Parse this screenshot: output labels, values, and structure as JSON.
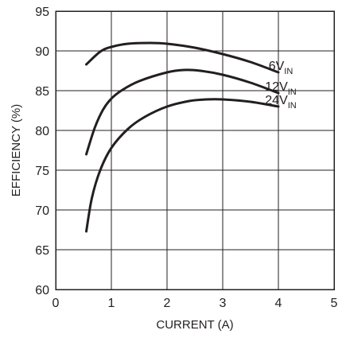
{
  "chart_data": {
    "type": "line",
    "title": "",
    "xlabel": "CURRENT (A)",
    "ylabel": "EFFICIENCY (%)",
    "xlim": [
      0,
      5
    ],
    "ylim": [
      60,
      95
    ],
    "x_ticks": [
      0,
      1,
      2,
      3,
      4,
      5
    ],
    "y_ticks": [
      60,
      65,
      70,
      75,
      80,
      85,
      90,
      95
    ],
    "grid": true,
    "legend": "inline labels at right end of curves",
    "line_color": "#231f20",
    "series": [
      {
        "name": "6V",
        "name_subscript": "IN",
        "x": [
          0.55,
          0.8,
          1.0,
          1.3,
          1.7,
          2.0,
          2.5,
          3.0,
          3.5,
          4.0
        ],
        "y": [
          88.3,
          89.9,
          90.5,
          90.9,
          91.0,
          90.9,
          90.4,
          89.6,
          88.6,
          87.3
        ]
      },
      {
        "name": "12V",
        "name_subscript": "IN",
        "x": [
          0.55,
          0.7,
          0.85,
          1.0,
          1.2,
          1.5,
          2.0,
          2.3,
          2.6,
          3.0,
          3.5,
          4.0
        ],
        "y": [
          77.0,
          80.3,
          82.6,
          84.0,
          85.1,
          86.2,
          87.3,
          87.6,
          87.5,
          87.0,
          86.0,
          84.7
        ]
      },
      {
        "name": "24V",
        "name_subscript": "IN",
        "x": [
          0.55,
          0.65,
          0.8,
          1.0,
          1.3,
          1.6,
          2.0,
          2.4,
          2.7,
          3.0,
          3.5,
          4.0
        ],
        "y": [
          67.3,
          71.5,
          75.0,
          77.8,
          80.2,
          81.7,
          83.0,
          83.7,
          83.9,
          83.9,
          83.6,
          83.0
        ]
      }
    ]
  }
}
